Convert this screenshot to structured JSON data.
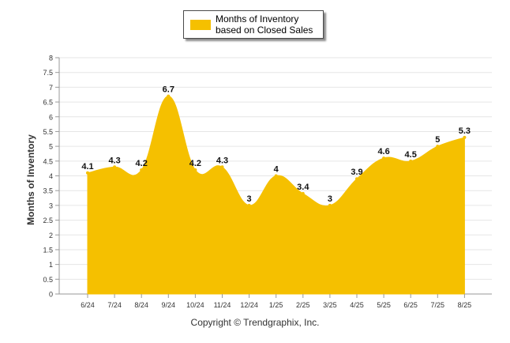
{
  "chart_data": {
    "type": "area",
    "categories": [
      "6/24",
      "7/24",
      "8/24",
      "9/24",
      "10/24",
      "11/24",
      "12/24",
      "1/25",
      "2/25",
      "3/25",
      "4/25",
      "5/25",
      "6/25",
      "7/25",
      "8/25"
    ],
    "series": [
      {
        "name": "Months of Inventory based on Closed Sales",
        "values": [
          4.1,
          4.3,
          4.2,
          6.7,
          4.2,
          4.3,
          3,
          4,
          3.4,
          3,
          3.9,
          4.6,
          4.5,
          5,
          5.3
        ],
        "labels": [
          "4.1",
          "4.3",
          "4.2",
          "6.7",
          "4.2",
          "4.3",
          "3",
          "4",
          "3.4",
          "3",
          "3.9",
          "4.6",
          "4.5",
          "5",
          "5.3"
        ]
      }
    ],
    "ylabel": "Months of Inventory",
    "ylim": [
      0,
      8
    ],
    "yticks": [
      "0",
      "0.5",
      "1",
      "1.5",
      "2",
      "2.5",
      "3",
      "3.5",
      "4",
      "4.5",
      "5",
      "5.5",
      "6",
      "6.5",
      "7",
      "7.5",
      "8"
    ],
    "grid": true,
    "legend": "top-center",
    "colors": {
      "fill": "#f5c000",
      "grid": "#e6e6e6",
      "axis": "#999999"
    }
  },
  "legend": {
    "label": "Months of Inventory based on Closed Sales"
  },
  "footer": {
    "copyright": "Copyright © Trendgraphix, Inc."
  }
}
